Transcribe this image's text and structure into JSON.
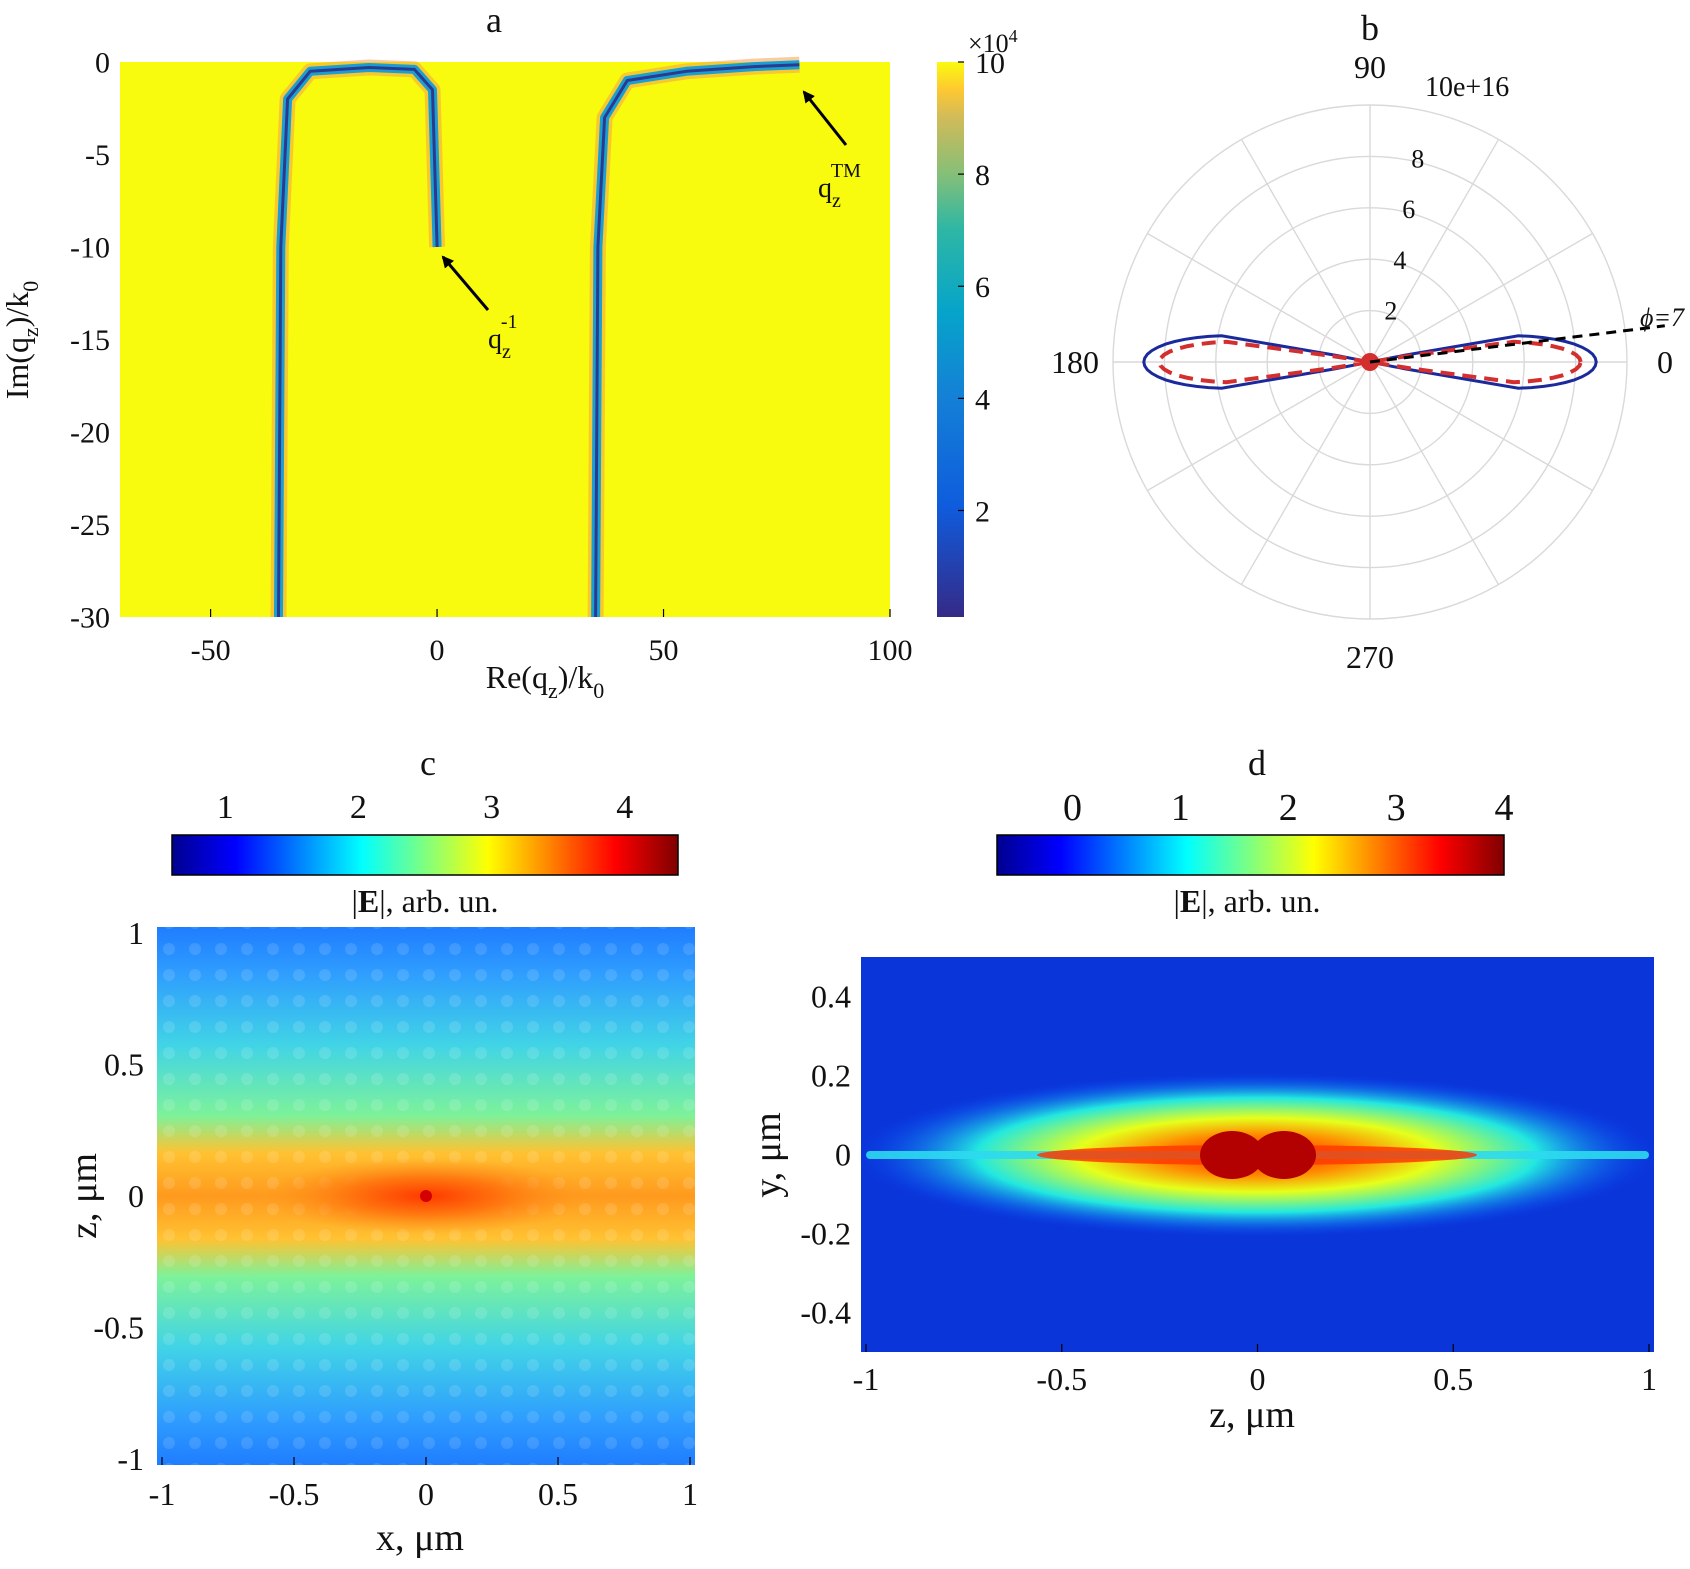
{
  "colors": {
    "background": "#FFFFFF",
    "yellow_bg": "#F2F01B",
    "parula_low": "#352A87",
    "parula_mid": "#21B1A8",
    "parula_high": "#F9FB0E",
    "polar_solid": "#1A2A9C",
    "polar_dashed": "#D32F2F",
    "polar_grid": "#D9D9D9",
    "arrow": "#000000"
  },
  "chart_data": [
    {
      "panel": "a",
      "type": "heatmap",
      "title": "a",
      "xlabel": "Re(q_z)/k_0",
      "ylabel": "Im(q_z)/k_0",
      "xlim": [
        -70,
        100
      ],
      "ylim": [
        -30,
        0
      ],
      "x_ticks": [
        "-50",
        "0",
        "50",
        "100"
      ],
      "x_tick_values": [
        -50,
        0,
        50,
        100
      ],
      "y_ticks": [
        "0",
        "-5",
        "-10",
        "-15",
        "-20",
        "-25",
        "-30"
      ],
      "y_tick_values": [
        0,
        -5,
        -10,
        -15,
        -20,
        -25,
        -30
      ],
      "colorbar": {
        "ticks": [
          "10",
          "8",
          "6",
          "4",
          "2"
        ],
        "tick_values": [
          10,
          8,
          6,
          4,
          2
        ],
        "multiplier": "×10",
        "multiplier_exp": "4",
        "range": [
          0.1,
          10
        ]
      },
      "curves": [
        {
          "name": "left-branch",
          "points": [
            [
              -35,
              -30
            ],
            [
              -34.5,
              -10
            ],
            [
              -33,
              -2
            ],
            [
              -28,
              -0.5
            ],
            [
              -15,
              -0.3
            ],
            [
              -5,
              -0.4
            ],
            [
              -1,
              -1.5
            ],
            [
              0,
              -10
            ]
          ]
        },
        {
          "name": "right-branch",
          "points": [
            [
              35,
              -30
            ],
            [
              35.5,
              -10
            ],
            [
              37,
              -3
            ],
            [
              42,
              -1
            ],
            [
              55,
              -0.5
            ],
            [
              70,
              -0.25
            ],
            [
              80,
              -0.15
            ]
          ]
        }
      ],
      "annotations": [
        {
          "id": "qz_minus1",
          "base": "q",
          "sub": "z",
          "sup": "-1",
          "points_to": [
            0,
            -10
          ]
        },
        {
          "id": "qz_tm",
          "base": "q",
          "sub": "z",
          "sup": "TM",
          "points_to": [
            80,
            -0.15
          ]
        }
      ]
    },
    {
      "panel": "b",
      "type": "polar",
      "title": "b",
      "angle_labels": [
        "90",
        "180",
        "270",
        "0"
      ],
      "angle_label_values": [
        90,
        180,
        270,
        0
      ],
      "radial_ticks": [
        "2",
        "4",
        "6",
        "8"
      ],
      "radial_tick_values": [
        2,
        4,
        6,
        8
      ],
      "radial_max": 10,
      "radial_scale_label": "10e+16",
      "phi_label": "ϕ=7",
      "phi_angle_deg": 7,
      "series": [
        {
          "name": "solid",
          "style": "solid",
          "lobes": [
            {
              "angle_deg": 0,
              "r_max": 8.8,
              "half_width_deg": 12
            },
            {
              "angle_deg": 180,
              "r_max": 8.8,
              "half_width_deg": 12
            }
          ]
        },
        {
          "name": "dashed",
          "style": "dashed",
          "lobes": [
            {
              "angle_deg": 0,
              "r_max": 8.2,
              "half_width_deg": 10
            },
            {
              "angle_deg": 180,
              "r_max": 8.2,
              "half_width_deg": 10
            }
          ]
        }
      ]
    },
    {
      "panel": "c",
      "type": "heatmap",
      "title": "c",
      "xlabel": "x, μm",
      "ylabel": "z, μm",
      "xlim": [
        -1,
        1
      ],
      "ylim": [
        -1,
        1
      ],
      "x_ticks": [
        "-1",
        "-0.5",
        "0",
        "0.5",
        "1"
      ],
      "x_tick_values": [
        -1,
        -0.5,
        0,
        0.5,
        1
      ],
      "y_ticks": [
        "1",
        "0.5",
        "0",
        "-0.5",
        "-1"
      ],
      "y_tick_values": [
        1,
        0.5,
        0,
        -0.5,
        -1
      ],
      "colorbar": {
        "label": "|E|, arb. un.",
        "label_bold": "E",
        "ticks": [
          "1",
          "2",
          "3",
          "4"
        ],
        "tick_values": [
          1,
          2,
          3,
          4
        ],
        "range": [
          0.6,
          4.4
        ]
      }
    },
    {
      "panel": "d",
      "type": "heatmap",
      "title": "d",
      "xlabel": "z, μm",
      "ylabel": "y, μm",
      "xlim": [
        -1,
        1
      ],
      "ylim": [
        -0.5,
        0.5
      ],
      "x_ticks": [
        "-1",
        "-0.5",
        "0",
        "0.5",
        "1"
      ],
      "x_tick_values": [
        -1,
        -0.5,
        0,
        0.5,
        1
      ],
      "y_ticks": [
        "0.4",
        "0.2",
        "0",
        "-0.2",
        "-0.4"
      ],
      "y_tick_values": [
        0.4,
        0.2,
        0,
        -0.2,
        -0.4
      ],
      "colorbar": {
        "label": "|E|, arb. un.",
        "label_bold": "E",
        "ticks": [
          "0",
          "1",
          "2",
          "3",
          "4"
        ],
        "tick_values": [
          0,
          1,
          2,
          3,
          4
        ],
        "range": [
          -0.7,
          4
        ]
      }
    }
  ]
}
